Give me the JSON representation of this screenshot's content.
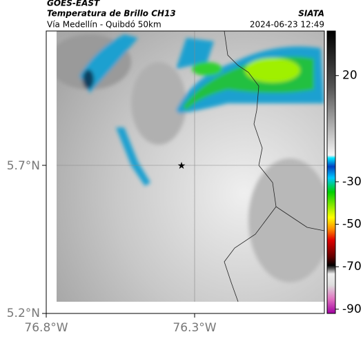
{
  "header": {
    "agency": "GOES-EAST",
    "product": "Temperatura de Brillo CH13",
    "source": "SIATA",
    "route": "Vía Medellín - Quibdó 50km",
    "timestamp": "2024-06-23 12:49"
  },
  "map": {
    "lat_labels": [
      "5.7°N",
      "5.2°N"
    ],
    "lon_labels": [
      "76.8°W",
      "76.3°W"
    ]
  },
  "colorbar": {
    "lim": [
      41,
      -92
    ],
    "ticks": [
      20,
      -30,
      -50,
      -70,
      -90
    ]
  }
}
